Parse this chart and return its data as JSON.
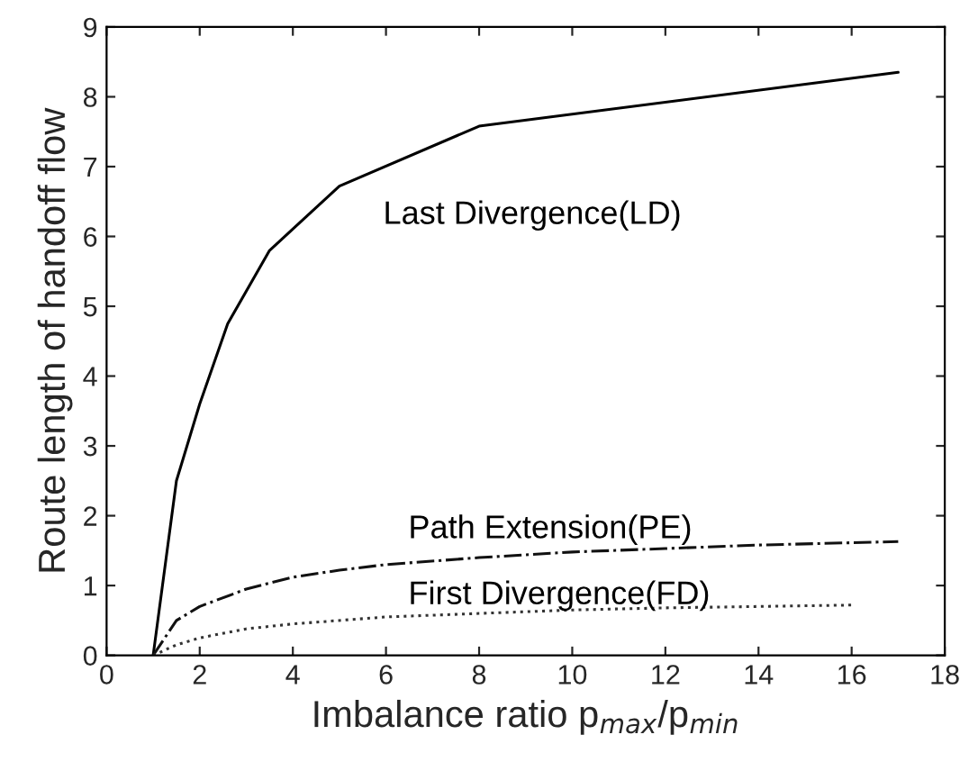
{
  "chart_data": {
    "type": "line",
    "xlabel": "Imbalance ratio p$_{max}$/p$_{min}$",
    "ylabel": "Route length of handoff flow",
    "xlim": [
      0,
      18
    ],
    "xticks": [
      0,
      2,
      4,
      6,
      8,
      10,
      12,
      14,
      16,
      18
    ],
    "ylim": [
      0,
      9
    ],
    "yticks": [
      0,
      1,
      2,
      3,
      4,
      5,
      6,
      7,
      8,
      9
    ],
    "grid": false,
    "marker": "none",
    "series": [
      {
        "name": "Last Divergence(LD)",
        "color": "#000000",
        "line_style": "solid",
        "x": [
          1,
          1.5,
          2,
          2.6,
          3.5,
          5,
          8,
          17
        ],
        "values": [
          0,
          2.5,
          3.6,
          4.75,
          5.8,
          6.72,
          7.58,
          8.35
        ]
      },
      {
        "name": "Path Extension(PE)",
        "color": "#111111",
        "line_style": "dashdot",
        "x": [
          1,
          1.5,
          2,
          3,
          4,
          5,
          6,
          8,
          10,
          12,
          14,
          17
        ],
        "values": [
          0,
          0.5,
          0.7,
          0.95,
          1.12,
          1.22,
          1.3,
          1.4,
          1.48,
          1.53,
          1.58,
          1.63
        ]
      },
      {
        "name": "First Divergence(FD)",
        "color": "#333333",
        "line_style": "dotted",
        "x": [
          1,
          1.5,
          2,
          3,
          4,
          6,
          8,
          10,
          12,
          16
        ],
        "values": [
          0,
          0.15,
          0.25,
          0.38,
          0.45,
          0.55,
          0.6,
          0.65,
          0.68,
          0.72
        ]
      }
    ]
  }
}
